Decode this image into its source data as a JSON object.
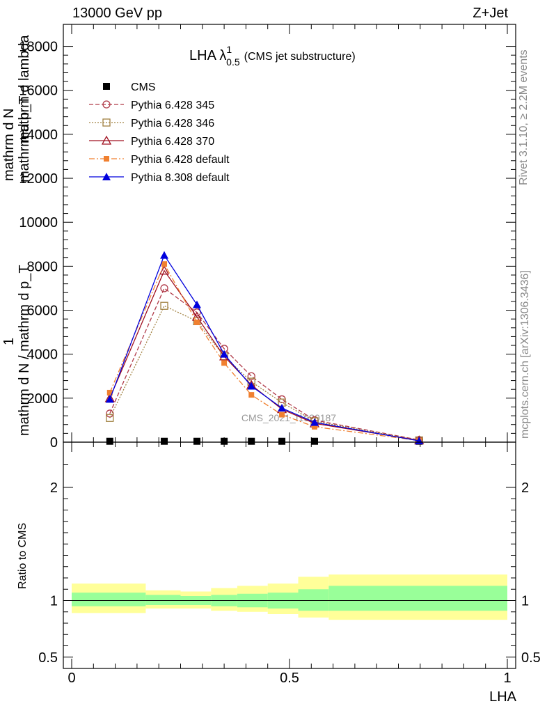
{
  "header": {
    "left": "13000 GeV pp",
    "right": "Z+Jet"
  },
  "side_labels": {
    "rivet": "Rivet 3.1.10, ≥ 2.2M events",
    "mcplots": "mcplots.cern.ch [arXiv:1306.3436]"
  },
  "axis_text": {
    "ylabel_num_1": "mathrm d",
    "ylabel_num_2": "N",
    "ylabel_lambda": "mathrm d lambda",
    "ylabel_frac1_den": "mathrm d p_T",
    "ylabel_one": "1",
    "ylabel_den": "mathrm d N / mathrm d p_T",
    "ratio_ylabel": "Ratio to CMS",
    "xlabel": "LHA"
  },
  "chart_data": {
    "type": "line",
    "title": "LHA λ",
    "title_sup": "1",
    "title_sub": "0.5",
    "title_suffix": "(CMS jet substructure)",
    "watermark": "CMS_2021_I1920187",
    "xlabel": "LHA",
    "x": [
      0.0875,
      0.2125,
      0.2875,
      0.35,
      0.4125,
      0.4825,
      0.5575,
      0.7975
    ],
    "main_ylim": [
      0,
      19000
    ],
    "main_yticks": [
      0,
      2000,
      4000,
      6000,
      8000,
      10000,
      12000,
      14000,
      16000,
      18000
    ],
    "main_ytick_labels": [
      "0",
      "2000",
      "4000",
      "6000",
      "8000",
      "10000",
      "12000",
      "14000",
      "16000",
      "18000"
    ],
    "ratio_ylim": [
      0.4,
      2.4
    ],
    "ratio_yticks": [
      0.5,
      1,
      2
    ],
    "ratio_ytick_labels": [
      "0.5",
      "1",
      "2"
    ],
    "xticks": [
      0,
      0.5,
      1
    ],
    "xtick_labels": [
      "0",
      "0.5",
      "1"
    ],
    "series": [
      {
        "name": "CMS",
        "color": "#000000",
        "marker": "square",
        "line": "none",
        "values": [
          40,
          40,
          40,
          40,
          40,
          40,
          40,
          40
        ]
      },
      {
        "name": "Pythia 6.428 345",
        "color": "#b03a48",
        "marker": "circle-open",
        "line": "dashed",
        "values": [
          1300,
          7000,
          5900,
          4250,
          3000,
          1950,
          1000,
          100
        ]
      },
      {
        "name": "Pythia 6.428 346",
        "color": "#a08040",
        "marker": "square-open",
        "line": "dotted",
        "values": [
          1100,
          6200,
          5500,
          3900,
          2750,
          1800,
          950,
          80
        ]
      },
      {
        "name": "Pythia 6.428 370",
        "color": "#a01020",
        "marker": "triangle-open",
        "line": "solid",
        "values": [
          2000,
          7800,
          5700,
          3900,
          2600,
          1500,
          850,
          80
        ]
      },
      {
        "name": "Pythia 6.428 default",
        "color": "#f08030",
        "marker": "square-filled",
        "line": "dashdot",
        "values": [
          2250,
          8100,
          5450,
          3600,
          2150,
          1250,
          700,
          70
        ]
      },
      {
        "name": "Pythia 8.308 default",
        "color": "#0000dd",
        "marker": "triangle-filled",
        "line": "solid",
        "values": [
          1950,
          8500,
          6250,
          4000,
          2550,
          1550,
          900,
          60
        ]
      }
    ],
    "ratio_bands": {
      "bins": [
        [
          0.0,
          0.17
        ],
        [
          0.17,
          0.25
        ],
        [
          0.25,
          0.32
        ],
        [
          0.32,
          0.38
        ],
        [
          0.38,
          0.45
        ],
        [
          0.45,
          0.52
        ],
        [
          0.52,
          0.59
        ],
        [
          0.59,
          1.0
        ]
      ],
      "inner": [
        [
          0.95,
          1.07
        ],
        [
          0.96,
          1.05
        ],
        [
          0.96,
          1.04
        ],
        [
          0.95,
          1.05
        ],
        [
          0.94,
          1.06
        ],
        [
          0.93,
          1.07
        ],
        [
          0.91,
          1.1
        ],
        [
          0.91,
          1.13
        ]
      ],
      "outer": [
        [
          0.89,
          1.15
        ],
        [
          0.93,
          1.09
        ],
        [
          0.93,
          1.08
        ],
        [
          0.91,
          1.11
        ],
        [
          0.9,
          1.13
        ],
        [
          0.88,
          1.15
        ],
        [
          0.85,
          1.21
        ],
        [
          0.83,
          1.23
        ]
      ],
      "inner_color": "#99ff99",
      "outer_color": "#ffff99"
    }
  }
}
